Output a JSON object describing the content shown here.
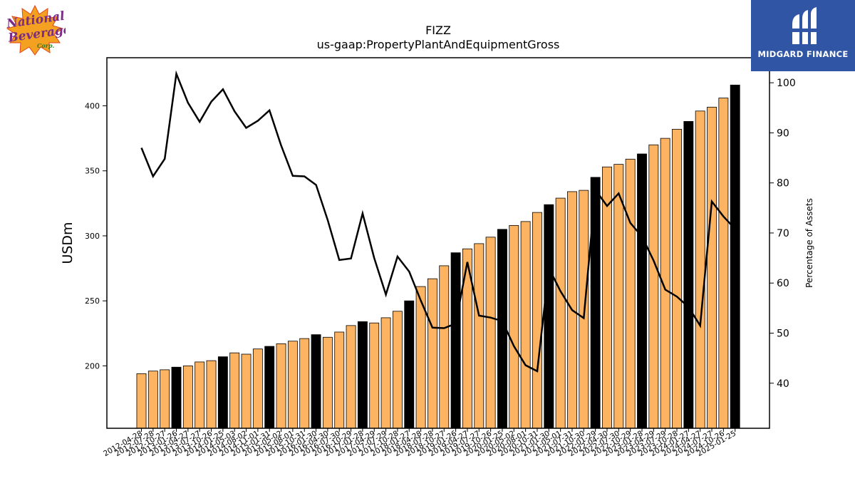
{
  "logo_left": {
    "line1": "National",
    "line2": "Beverage",
    "line3": "Corp."
  },
  "logo_right": {
    "name": "MIDGARD FINANCE"
  },
  "chart_data": {
    "type": "bar",
    "title": "FIZZ",
    "subtitle": "us-gaap:PropertyPlantAndEquipmentGross",
    "ylabel": "USDm",
    "y2label": "Percentage of Assets",
    "ylim": [
      152,
      437
    ],
    "y2lim": [
      31,
      105
    ],
    "yticks": [
      200,
      250,
      300,
      350,
      400
    ],
    "y2ticks": [
      40,
      50,
      60,
      70,
      80,
      90,
      100
    ],
    "colors": {
      "bar": "#fdb462",
      "highlight": "#000000",
      "line": "#000000"
    },
    "categories": [
      "2012-04-28",
      "2012-07-28",
      "2012-10-27",
      "2013-01-26",
      "2013-04-27",
      "2013-07-27",
      "2013-10-26",
      "2014-01-25",
      "2014-05-03",
      "2014-08-02",
      "2014-11-01",
      "2015-01-31",
      "2015-05-02",
      "2015-08-01",
      "2015-10-31",
      "2016-01-30",
      "2016-04-30",
      "2016-07-30",
      "2016-10-29",
      "2017-01-28",
      "2017-04-29",
      "2017-07-29",
      "2017-10-28",
      "2018-01-27",
      "2018-04-28",
      "2018-07-28",
      "2018-10-27",
      "2019-01-26",
      "2019-04-27",
      "2019-07-27",
      "2019-10-26",
      "2020-01-25",
      "2020-05-02",
      "2020-08-01",
      "2020-10-31",
      "2021-01-30",
      "2021-05-01",
      "2021-07-31",
      "2021-10-30",
      "2022-01-29",
      "2022-04-30",
      "2022-07-30",
      "2022-10-29",
      "2023-01-28",
      "2023-04-29",
      "2023-07-29",
      "2023-10-28",
      "2024-01-27",
      "2024-04-27",
      "2024-07-27",
      "2024-10-26",
      "2025-01-25"
    ],
    "xtick_labels": [
      "2012-04-28",
      "2012-07-28",
      "2012-10-27",
      "2013-01-26",
      "2013-04-27",
      "2013-07-27",
      "2013-10-26",
      "2014-01-25",
      "2014-05-03",
      "2014-08-02",
      "2014-11-01",
      "2015-01-31",
      "2015-05-02",
      "2015-08-01",
      "2015-10-31",
      "2016-01-30",
      "2016-04-30",
      "2016-07-30",
      "2016-10-29",
      "2017-01-28",
      "2017-04-29",
      "2017-07-29",
      "2017-10-28",
      "2018-01-27",
      "2018-04-28",
      "2018-07-28",
      "2018-10-27",
      "2019-01-26",
      "2019-04-27",
      "2019-07-27",
      "2019-10-26",
      "2020-01-25",
      "2020-05-02",
      "2020-08-01",
      "2020-10-31",
      "2021-01-30",
      "2021-05-01",
      "2021-07-31",
      "2021-10-30",
      "2022-01-29",
      "2022-04-30",
      "2022-07-30",
      "2022-10-29",
      "2023-01-28",
      "2023-04-29",
      "2023-07-29",
      "2023-10-28",
      "2024-01-27",
      "2024-04-27",
      "2024-07-27",
      "2024-10-26",
      "2025-01-25"
    ],
    "series": [
      {
        "axis": "left",
        "type": "bar",
        "values": [
          194,
          196,
          197,
          199,
          200,
          203,
          204,
          207,
          210,
          209,
          213,
          215,
          217,
          219,
          221,
          224,
          222,
          226,
          231,
          234,
          233,
          237,
          242,
          250,
          261,
          267,
          277,
          287,
          290,
          294,
          299,
          305,
          308,
          311,
          318,
          324,
          329,
          334,
          335,
          345,
          353,
          355,
          359,
          363,
          370,
          375,
          382,
          388,
          396,
          399,
          406,
          416
        ],
        "highlight": [
          3,
          7,
          11,
          15,
          19,
          23,
          27,
          31,
          35,
          39,
          43,
          47,
          51
        ]
      },
      {
        "axis": "right",
        "type": "line",
        "values": [
          87,
          81.3,
          84.8,
          101.8,
          96,
          92.2,
          96.2,
          98.7,
          94.3,
          91,
          92.4,
          94.5,
          87.5,
          81.4,
          81.3,
          79.6,
          72.6,
          64.6,
          64.9,
          73.9,
          65,
          57.7,
          65.3,
          62.3,
          56.5,
          51.1,
          51,
          51.9,
          64.2,
          53.5,
          53.1,
          52.4,
          47.4,
          43.6,
          42.4,
          63,
          58.4,
          54.6,
          53,
          78.6,
          75.4,
          77.9,
          72,
          69.3,
          64.5,
          58.7,
          57.3,
          55.2,
          51.5,
          76.3,
          73.3,
          70.8
        ]
      }
    ]
  }
}
